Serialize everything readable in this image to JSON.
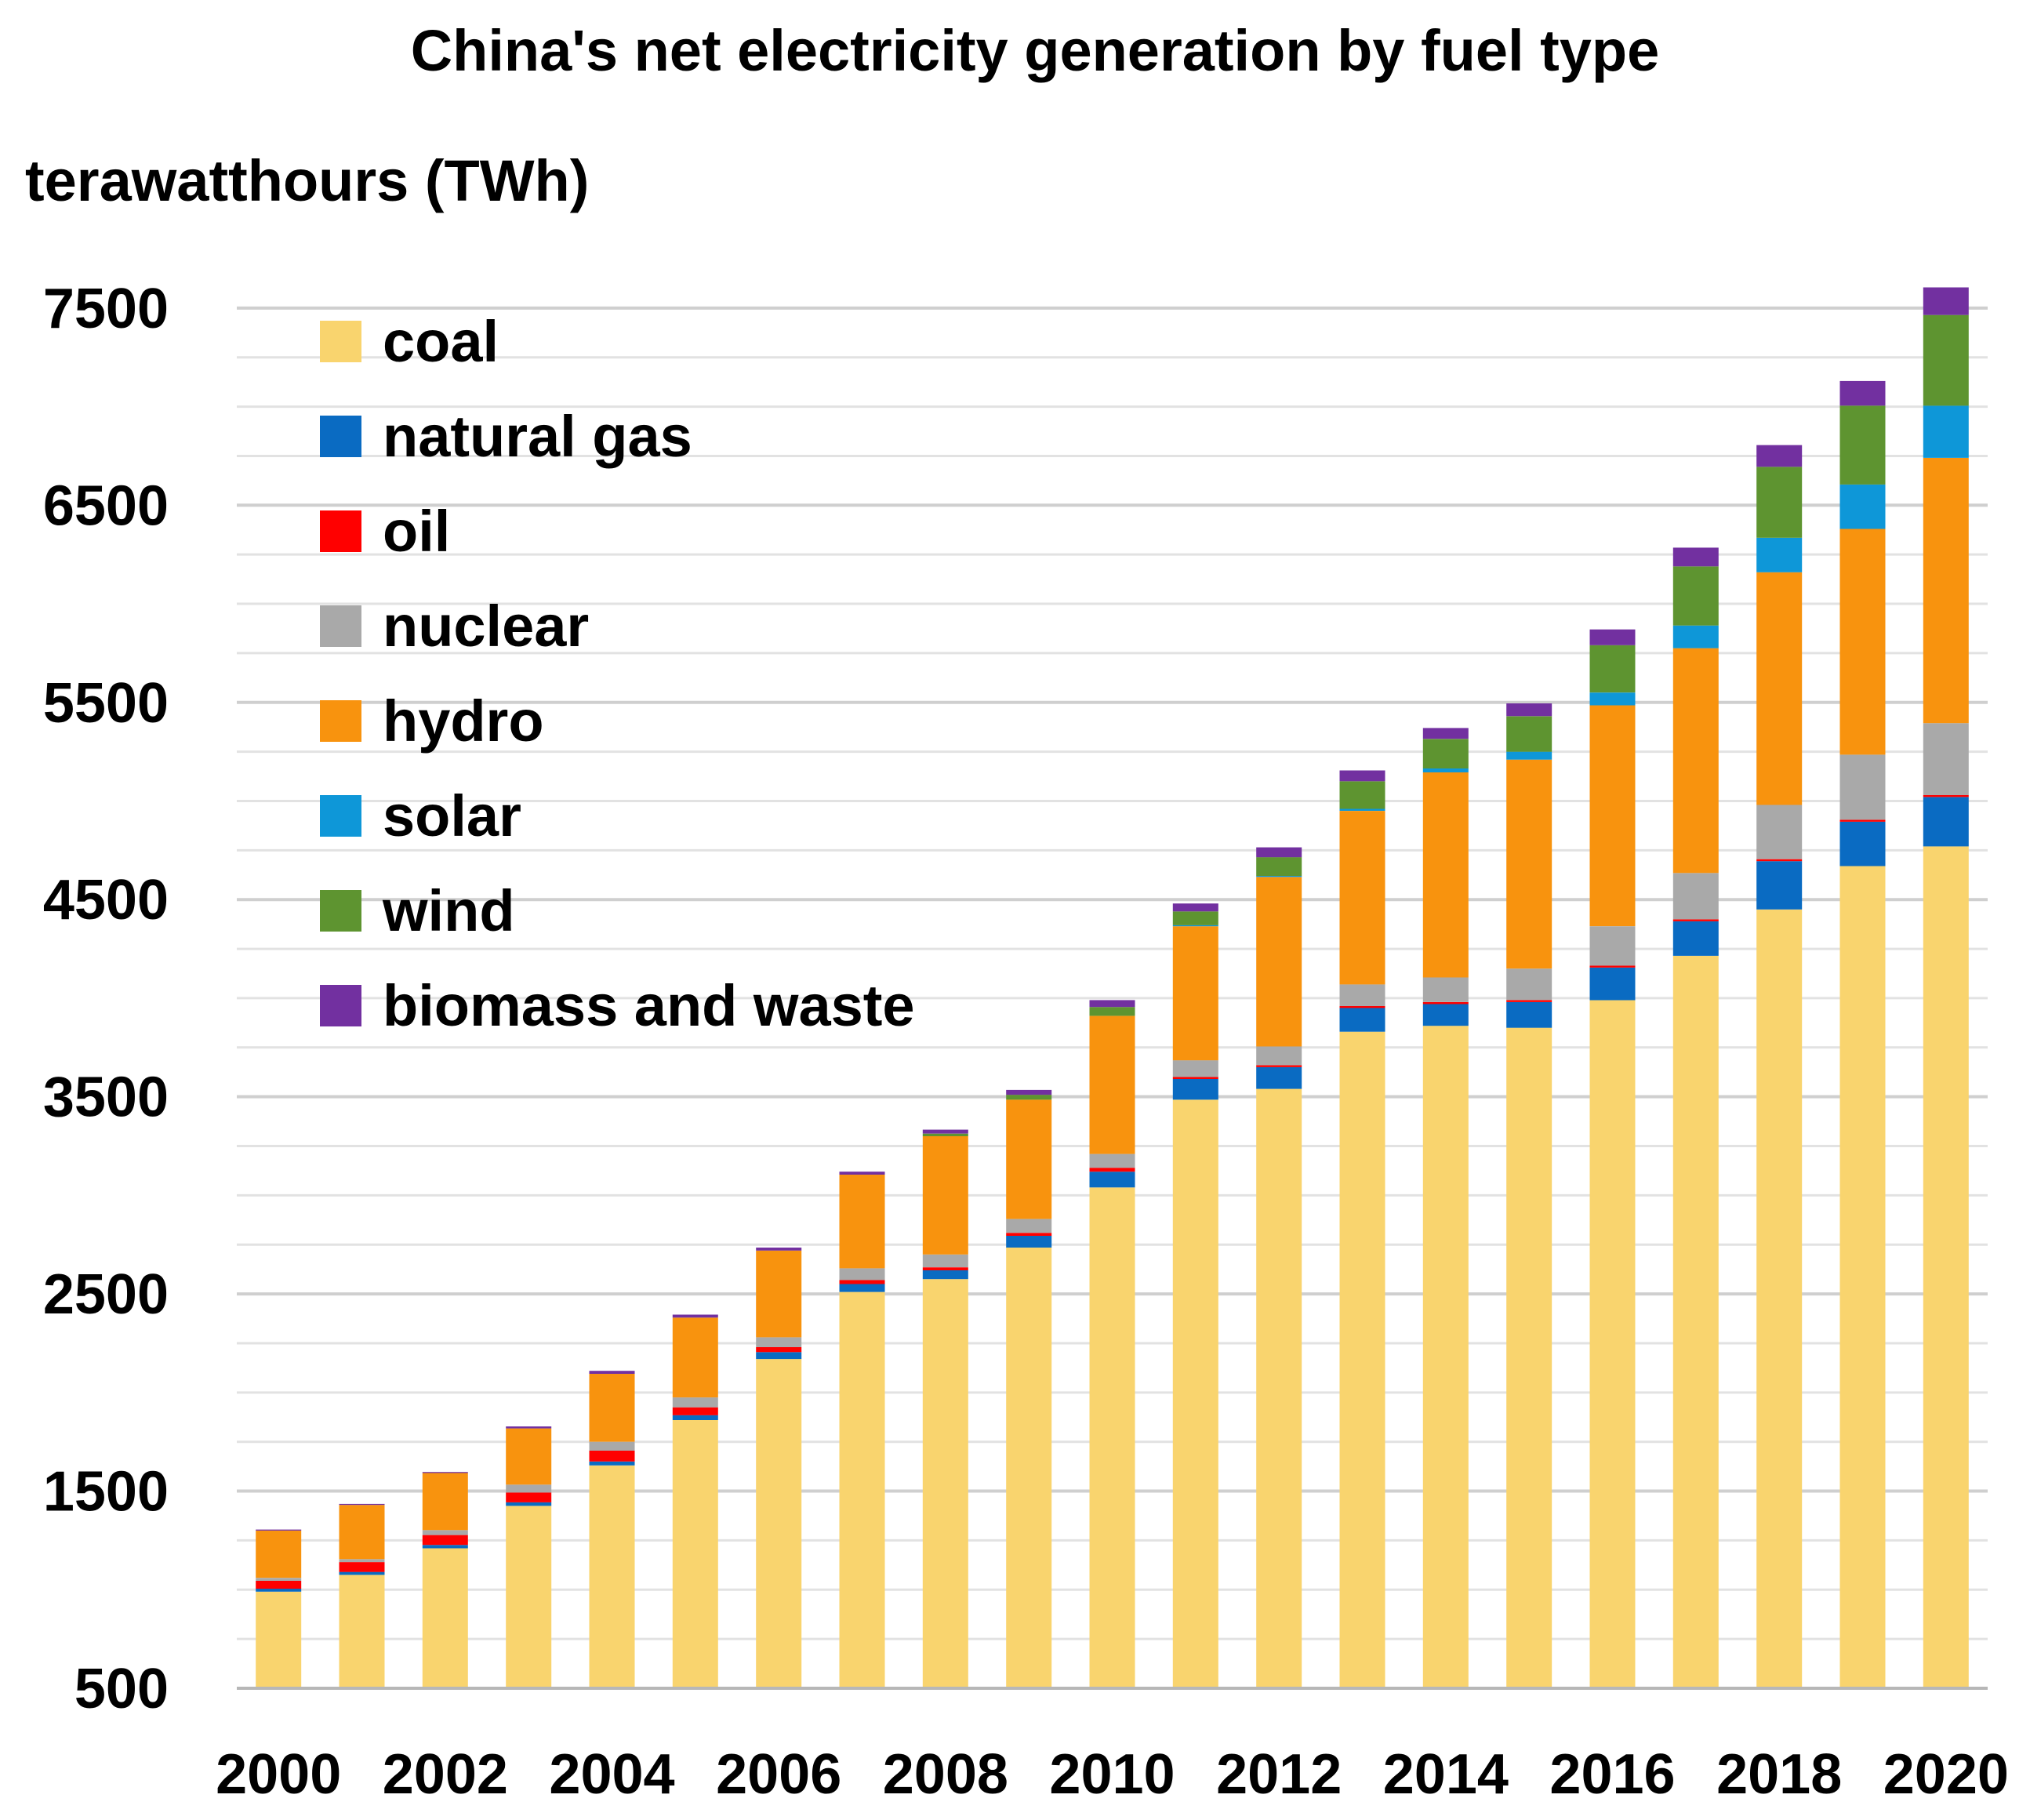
{
  "chart_data": {
    "type": "bar",
    "stacked": true,
    "title": "China's net electricity generation by fuel type",
    "ylabel": "terawatthours (TWh)",
    "xlabel": "",
    "ylim": [
      500,
      7750
    ],
    "yticks": [
      500,
      1500,
      2500,
      3500,
      4500,
      5500,
      6500,
      7500
    ],
    "categories": [
      "2000",
      "2001",
      "2002",
      "2003",
      "2004",
      "2005",
      "2006",
      "2007",
      "2008",
      "2009",
      "2010",
      "2011",
      "2012",
      "2013",
      "2014",
      "2015",
      "2016",
      "2017",
      "2018",
      "2019",
      "2020"
    ],
    "xtick_labels": [
      "2000",
      "2002",
      "2004",
      "2006",
      "2008",
      "2010",
      "2012",
      "2014",
      "2016",
      "2018",
      "2020"
    ],
    "legend_position": "top-left",
    "gridlines": true,
    "series": [
      {
        "name": "coal",
        "color": "#F9D46E",
        "values": [
          990,
          1075,
          1210,
          1425,
          1630,
          1860,
          2170,
          2510,
          2575,
          2735,
          3040,
          3485,
          3540,
          3830,
          3860,
          3850,
          3990,
          4215,
          4450,
          4670,
          4770
        ]
      },
      {
        "name": "natural gas",
        "color": "#0A6BC2",
        "values": [
          15,
          15,
          17,
          18,
          20,
          25,
          35,
          40,
          45,
          60,
          80,
          105,
          110,
          120,
          110,
          130,
          165,
          175,
          245,
          225,
          250
        ]
      },
      {
        "name": "oil",
        "color": "#FF0000",
        "values": [
          40,
          50,
          50,
          50,
          55,
          40,
          25,
          20,
          15,
          15,
          20,
          10,
          10,
          10,
          10,
          10,
          10,
          10,
          10,
          10,
          10
        ]
      },
      {
        "name": "nuclear",
        "color": "#A9A9A9",
        "values": [
          15,
          15,
          25,
          40,
          45,
          50,
          50,
          60,
          65,
          70,
          70,
          85,
          95,
          110,
          125,
          160,
          200,
          235,
          275,
          330,
          365
        ]
      },
      {
        "name": "hydro",
        "color": "#F8930E",
        "values": [
          240,
          275,
          290,
          285,
          345,
          405,
          440,
          475,
          600,
          605,
          700,
          680,
          860,
          880,
          1040,
          1060,
          1120,
          1140,
          1180,
          1145,
          1345
        ]
      },
      {
        "name": "solar",
        "color": "#0E97D8",
        "values": [
          0,
          0,
          0,
          0,
          0,
          0,
          0,
          0,
          0,
          0,
          0,
          5,
          5,
          10,
          20,
          40,
          65,
          115,
          175,
          225,
          265
        ]
      },
      {
        "name": "wind",
        "color": "#5E9430",
        "values": [
          0,
          0,
          0,
          0,
          0,
          0,
          0,
          0,
          13,
          25,
          45,
          70,
          95,
          140,
          150,
          180,
          240,
          300,
          360,
          400,
          460
        ]
      },
      {
        "name": "biomass and waste",
        "color": "#7230A0",
        "values": [
          5,
          5,
          5,
          10,
          15,
          15,
          15,
          15,
          20,
          25,
          35,
          40,
          50,
          55,
          55,
          65,
          80,
          95,
          110,
          125,
          140
        ]
      }
    ]
  }
}
